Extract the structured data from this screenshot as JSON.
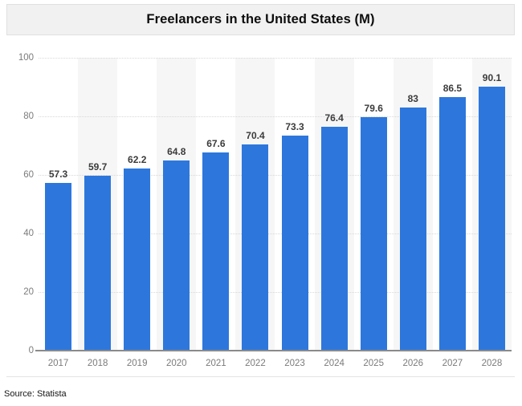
{
  "title": "Freelancers in the United States (M)",
  "source": "Source: Statista",
  "chart_data": {
    "type": "bar",
    "title": "Freelancers in the United States (M)",
    "categories": [
      "2017",
      "2018",
      "2019",
      "2020",
      "2021",
      "2022",
      "2023",
      "2024",
      "2025",
      "2026",
      "2027",
      "2028"
    ],
    "values": [
      57.3,
      59.7,
      62.2,
      64.8,
      67.6,
      70.4,
      73.3,
      76.4,
      79.6,
      83,
      86.5,
      90.1
    ],
    "value_labels": [
      "57.3",
      "59.7",
      "62.2",
      "64.8",
      "67.6",
      "70.4",
      "73.3",
      "76.4",
      "79.6",
      "83",
      "86.5",
      "90.1"
    ],
    "xlabel": "",
    "ylabel": "",
    "ylim": [
      0,
      100
    ],
    "yticks": [
      0,
      20,
      40,
      60,
      80,
      100
    ],
    "grid": true,
    "gridline_style": "dotted",
    "legend": "none",
    "bar_color": "#2d77dc",
    "band_color": "#f6f6f6",
    "axis_line_color": "#8a8a8a",
    "tick_label_color": "#7b7b7b",
    "value_label_color": "#3b3b3b"
  }
}
